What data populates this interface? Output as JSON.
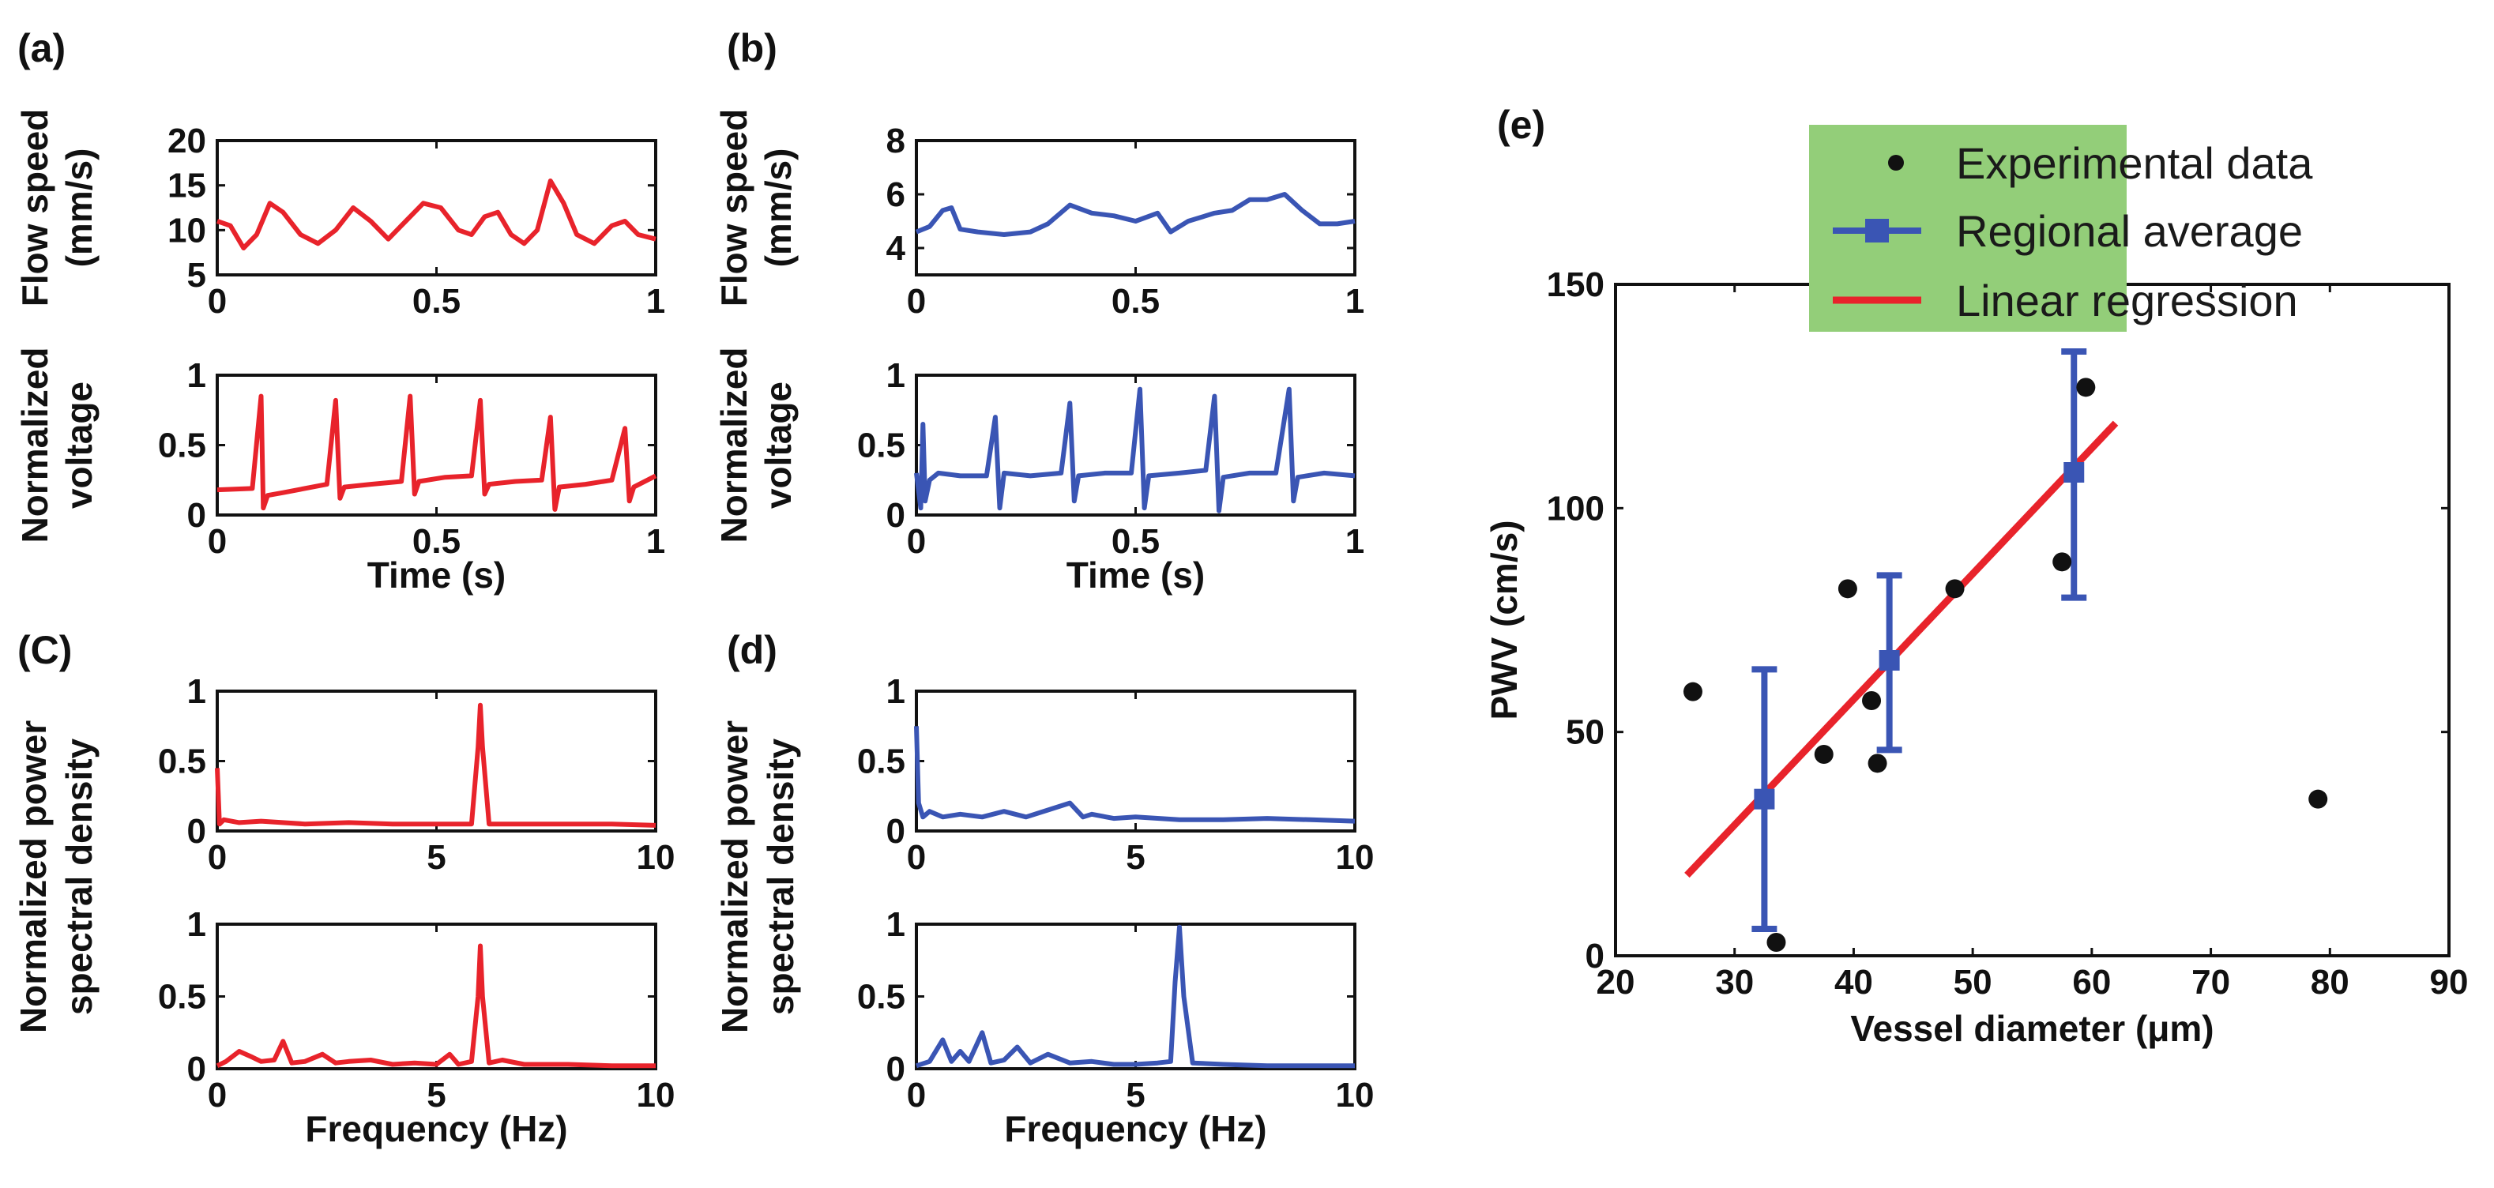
{
  "chart_data": [
    {
      "panel": "(a)",
      "type": "line",
      "color": "#e8232b",
      "ylabel": [
        "Flow speed",
        "(mm/s)"
      ],
      "xlabel": "",
      "xlim": [
        0,
        1
      ],
      "ylim": [
        5,
        20
      ],
      "xticks": [
        "0",
        "0.5",
        "1"
      ],
      "yticks": [
        "5",
        "10",
        "15",
        "20"
      ],
      "series": [
        {
          "name": "flow speed",
          "x": [
            0,
            0.03,
            0.06,
            0.09,
            0.12,
            0.15,
            0.19,
            0.23,
            0.27,
            0.31,
            0.35,
            0.39,
            0.43,
            0.47,
            0.51,
            0.55,
            0.58,
            0.61,
            0.64,
            0.67,
            0.7,
            0.73,
            0.76,
            0.79,
            0.82,
            0.86,
            0.9,
            0.93,
            0.96,
            1.0
          ],
          "y": [
            11,
            10.5,
            8,
            9.5,
            13,
            12,
            9.5,
            8.5,
            10,
            12.5,
            11,
            9,
            11,
            13,
            12.5,
            10,
            9.5,
            11.5,
            12,
            9.5,
            8.5,
            10,
            15.5,
            13,
            9.5,
            8.5,
            10.5,
            11,
            9.5,
            9
          ]
        }
      ]
    },
    {
      "panel": "",
      "type": "line",
      "color": "#e8232b",
      "ylabel": [
        "Normalized",
        "voltage"
      ],
      "xlabel": "Time (s)",
      "xlim": [
        0,
        1
      ],
      "ylim": [
        0,
        1
      ],
      "xticks": [
        "0",
        "0.5",
        "1"
      ],
      "yticks": [
        "0",
        "0.5",
        "1"
      ],
      "series": [
        {
          "name": "normalized voltage",
          "x": [
            0,
            0.08,
            0.1,
            0.105,
            0.115,
            0.15,
            0.25,
            0.27,
            0.28,
            0.29,
            0.35,
            0.42,
            0.44,
            0.45,
            0.46,
            0.52,
            0.58,
            0.6,
            0.61,
            0.62,
            0.68,
            0.74,
            0.76,
            0.77,
            0.78,
            0.84,
            0.9,
            0.93,
            0.94,
            0.95,
            1.0
          ],
          "y": [
            0.18,
            0.19,
            0.85,
            0.05,
            0.14,
            0.16,
            0.22,
            0.82,
            0.12,
            0.2,
            0.22,
            0.24,
            0.85,
            0.15,
            0.24,
            0.27,
            0.28,
            0.82,
            0.15,
            0.22,
            0.24,
            0.25,
            0.7,
            0.04,
            0.2,
            0.22,
            0.25,
            0.62,
            0.1,
            0.2,
            0.28
          ]
        }
      ]
    },
    {
      "panel": "(b)",
      "type": "line",
      "color": "#3a55b4",
      "ylabel": [
        "Flow speed",
        "(mm/s)"
      ],
      "xlabel": "",
      "xlim": [
        0,
        1
      ],
      "ylim": [
        3,
        8
      ],
      "xticks": [
        "0",
        "0.5",
        "1"
      ],
      "yticks": [
        "4",
        "6",
        "8"
      ],
      "series": [
        {
          "name": "flow speed",
          "x": [
            0,
            0.03,
            0.06,
            0.08,
            0.1,
            0.14,
            0.2,
            0.26,
            0.3,
            0.35,
            0.4,
            0.45,
            0.5,
            0.55,
            0.58,
            0.62,
            0.68,
            0.72,
            0.76,
            0.8,
            0.84,
            0.88,
            0.92,
            0.96,
            1.0
          ],
          "y": [
            4.6,
            4.8,
            5.4,
            5.5,
            4.7,
            4.6,
            4.5,
            4.6,
            4.9,
            5.6,
            5.3,
            5.2,
            5.0,
            5.3,
            4.6,
            5.0,
            5.3,
            5.4,
            5.8,
            5.8,
            6.0,
            5.4,
            4.9,
            4.9,
            5.0
          ]
        }
      ]
    },
    {
      "panel": "",
      "type": "line",
      "color": "#3a55b4",
      "ylabel": [
        "Normalized",
        "voltage"
      ],
      "xlabel": "Time (s)",
      "xlim": [
        0,
        1
      ],
      "ylim": [
        0,
        1
      ],
      "xticks": [
        "0",
        "0.5",
        "1"
      ],
      "yticks": [
        "0",
        "0.5",
        "1"
      ],
      "series": [
        {
          "name": "normalized voltage",
          "x": [
            0,
            0.01,
            0.015,
            0.02,
            0.03,
            0.05,
            0.1,
            0.16,
            0.18,
            0.19,
            0.2,
            0.26,
            0.33,
            0.35,
            0.36,
            0.37,
            0.43,
            0.49,
            0.51,
            0.52,
            0.53,
            0.6,
            0.66,
            0.68,
            0.69,
            0.7,
            0.76,
            0.82,
            0.85,
            0.86,
            0.87,
            0.93,
            1.0
          ],
          "y": [
            0.3,
            0.05,
            0.65,
            0.1,
            0.25,
            0.3,
            0.28,
            0.28,
            0.7,
            0.05,
            0.3,
            0.28,
            0.3,
            0.8,
            0.1,
            0.28,
            0.3,
            0.3,
            0.9,
            0.05,
            0.28,
            0.3,
            0.32,
            0.85,
            0.03,
            0.27,
            0.3,
            0.3,
            0.9,
            0.1,
            0.27,
            0.3,
            0.28
          ]
        }
      ]
    },
    {
      "panel": "(C)",
      "type": "line",
      "color": "#e8232b",
      "ylabel": [],
      "xlabel": "",
      "xlim": [
        0,
        10
      ],
      "ylim": [
        0,
        1
      ],
      "xticks": [
        "0",
        "5",
        "10"
      ],
      "yticks": [
        "0",
        "0.5",
        "1"
      ],
      "series": [
        {
          "name": "PSD",
          "x": [
            0,
            0.05,
            0.15,
            0.5,
            1,
            2,
            3,
            4,
            5,
            5.8,
            5.95,
            6.0,
            6.05,
            6.2,
            7,
            8,
            9,
            10
          ],
          "y": [
            0.45,
            0.05,
            0.08,
            0.06,
            0.07,
            0.05,
            0.06,
            0.05,
            0.05,
            0.05,
            0.6,
            0.9,
            0.6,
            0.05,
            0.05,
            0.05,
            0.05,
            0.04
          ]
        }
      ]
    },
    {
      "panel": "",
      "type": "line",
      "color": "#e8232b",
      "ylabel": [],
      "xlabel": "Frequency (Hz)",
      "xlim": [
        0,
        10
      ],
      "ylim": [
        0,
        1
      ],
      "xticks": [
        "0",
        "5",
        "10"
      ],
      "yticks": [
        "0",
        "0.5",
        "1"
      ],
      "series": [
        {
          "name": "PSD",
          "x": [
            0,
            0.2,
            0.5,
            0.8,
            1,
            1.3,
            1.5,
            1.7,
            2,
            2.4,
            2.7,
            3,
            3.5,
            4,
            4.5,
            5,
            5.3,
            5.5,
            5.8,
            5.95,
            6.0,
            6.05,
            6.2,
            6.5,
            7,
            8,
            9,
            10
          ],
          "y": [
            0.02,
            0.05,
            0.12,
            0.08,
            0.05,
            0.06,
            0.19,
            0.04,
            0.05,
            0.1,
            0.04,
            0.05,
            0.06,
            0.03,
            0.04,
            0.03,
            0.1,
            0.03,
            0.05,
            0.5,
            0.85,
            0.5,
            0.04,
            0.06,
            0.03,
            0.03,
            0.02,
            0.02
          ]
        }
      ]
    },
    {
      "panel": "(d)",
      "type": "line",
      "color": "#3a55b4",
      "ylabel": [],
      "xlabel": "",
      "xlim": [
        0,
        10
      ],
      "ylim": [
        0,
        1
      ],
      "xticks": [
        "0",
        "5",
        "10"
      ],
      "yticks": [
        "0",
        "0.5",
        "1"
      ],
      "series": [
        {
          "name": "PSD",
          "x": [
            0,
            0.05,
            0.15,
            0.3,
            0.6,
            1,
            1.5,
            2,
            2.5,
            3,
            3.5,
            3.8,
            4,
            4.5,
            5,
            6,
            7,
            8,
            9,
            10
          ],
          "y": [
            0.75,
            0.2,
            0.1,
            0.14,
            0.1,
            0.12,
            0.1,
            0.14,
            0.1,
            0.15,
            0.2,
            0.1,
            0.12,
            0.09,
            0.1,
            0.08,
            0.08,
            0.09,
            0.08,
            0.07
          ]
        }
      ]
    },
    {
      "panel": "",
      "type": "line",
      "color": "#3a55b4",
      "ylabel": [],
      "xlabel": "Frequency (Hz)",
      "xlim": [
        0,
        10
      ],
      "ylim": [
        0,
        1
      ],
      "xticks": [
        "0",
        "5",
        "10"
      ],
      "yticks": [
        "0",
        "0.5",
        "1"
      ],
      "series": [
        {
          "name": "PSD",
          "x": [
            0,
            0.3,
            0.6,
            0.8,
            1,
            1.2,
            1.5,
            1.7,
            2,
            2.3,
            2.6,
            3,
            3.5,
            4,
            4.5,
            5,
            5.5,
            5.8,
            5.9,
            6.0,
            6.1,
            6.3,
            7,
            8,
            9,
            10
          ],
          "y": [
            0.02,
            0.05,
            0.2,
            0.05,
            0.12,
            0.05,
            0.25,
            0.04,
            0.06,
            0.15,
            0.04,
            0.1,
            0.04,
            0.05,
            0.03,
            0.03,
            0.04,
            0.05,
            0.6,
            0.98,
            0.5,
            0.04,
            0.03,
            0.02,
            0.02,
            0.02
          ]
        }
      ]
    },
    {
      "panel": "(e)",
      "type": "scatter",
      "xlabel": "Vessel diameter (μm)",
      "ylabel": "PWV (cm/s)",
      "xlim": [
        20,
        90
      ],
      "ylim": [
        0,
        150
      ],
      "xticks": [
        "20",
        "30",
        "40",
        "50",
        "60",
        "70",
        "80",
        "90"
      ],
      "yticks": [
        "0",
        "50",
        "100",
        "150"
      ],
      "experimental_data": [
        {
          "x": 26.5,
          "y": 59
        },
        {
          "x": 33.5,
          "y": 3
        },
        {
          "x": 37.5,
          "y": 45
        },
        {
          "x": 39.5,
          "y": 82
        },
        {
          "x": 41.5,
          "y": 57
        },
        {
          "x": 42,
          "y": 43
        },
        {
          "x": 48.5,
          "y": 82
        },
        {
          "x": 57.5,
          "y": 88
        },
        {
          "x": 59.5,
          "y": 127
        },
        {
          "x": 79,
          "y": 35
        }
      ],
      "regional_average": [
        {
          "x": 32.5,
          "y": 35,
          "low": 6,
          "high": 64
        },
        {
          "x": 43,
          "y": 66,
          "low": 46,
          "high": 85
        },
        {
          "x": 58.5,
          "y": 108,
          "low": 80,
          "high": 135
        }
      ],
      "linear_regression": {
        "x": [
          26,
          62
        ],
        "y": [
          18,
          119
        ]
      },
      "colors": {
        "experimental": "#111111",
        "average": "#3a55b4",
        "regression": "#e8232b",
        "legend_bg": "#93ce79"
      }
    }
  ],
  "legend": {
    "experimental_label": "Experimental data",
    "average_label": "Regional average",
    "regression_label": "Linear regression"
  },
  "side_labels": {
    "left_psd": [
      "Normalized power",
      "spectral density"
    ],
    "right_psd": [
      "Normalized power",
      "spectral density"
    ]
  }
}
